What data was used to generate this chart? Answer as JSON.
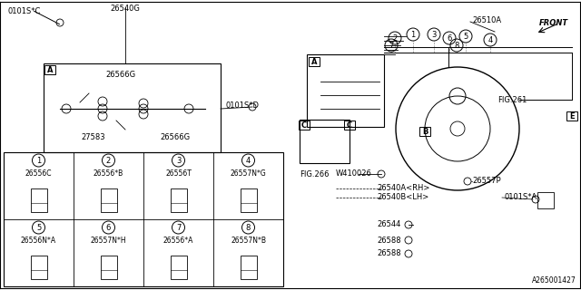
{
  "bg_color": "#ffffff",
  "line_color": "#000000",
  "part_number": "A265001427",
  "labels": {
    "front_label": "FRONT",
    "fig261": "FIG.261",
    "fig266": "FIG.266",
    "p26540G": "26540G",
    "p0101SC": "0101S*C",
    "p0101SD": "0101S*D",
    "p26566G_1": "26566G",
    "p26566G_2": "26566G",
    "p27583": "27583",
    "p26510A": "26510A",
    "pW410026": "W410026",
    "p26540ARH": "26540A<RH>",
    "p26540BLH": "26540B<LH>",
    "p26544": "26544",
    "p26588_1": "26588",
    "p26588_2": "26588",
    "p26557P": "26557P",
    "p0101SA": "0101S*A",
    "label_A": "A",
    "label_B": "B",
    "label_C": "C",
    "label_E": "E",
    "tbl1_part": "26556C",
    "tbl2_part": "26556*B",
    "tbl3_part": "26556T",
    "tbl4_part": "26557N*G",
    "tbl5_part": "26556N*A",
    "tbl6_part": "26557N*H",
    "tbl7_part": "26556*A",
    "tbl8_part": "26557N*B"
  }
}
